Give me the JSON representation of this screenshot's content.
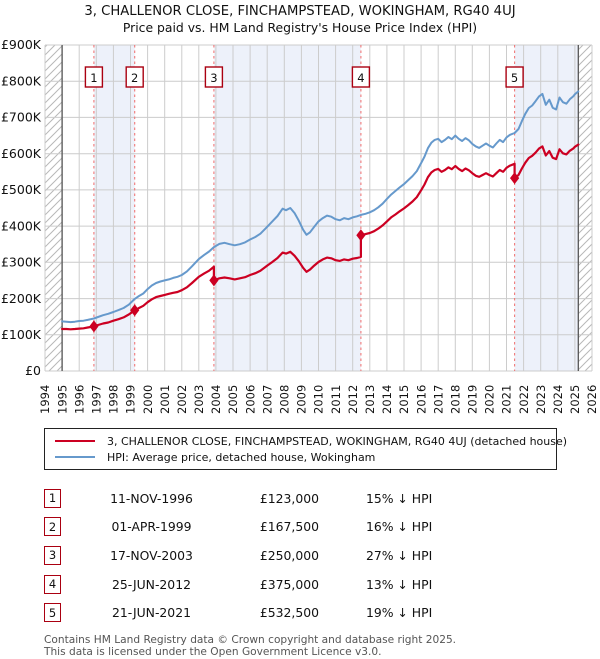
{
  "header": {
    "title": "3, CHALLENOR CLOSE, FINCHAMPSTEAD, WOKINGHAM, RG40 4UJ",
    "subtitle": "Price paid vs. HM Land Registry's House Price Index (HPI)"
  },
  "chart_data": {
    "type": "line",
    "title": "Price paid vs. HPI",
    "xlabel": "",
    "ylabel": "",
    "xlim": [
      1994,
      2026
    ],
    "ylim": [
      0,
      900
    ],
    "grid": true,
    "data_start": 1995.0,
    "data_end": 2025.2,
    "band_color": "#edf1fa",
    "grid_color": "#cccccc",
    "hatch_color": "#b8b8b8",
    "boundary_color": "#555555",
    "dashed_color": "#f07878",
    "marker_box_border": "#aa0011",
    "y_ticks": [
      {
        "value": 0,
        "label": "£0"
      },
      {
        "value": 100,
        "label": "£100K"
      },
      {
        "value": 200,
        "label": "£200K"
      },
      {
        "value": 300,
        "label": "£300K"
      },
      {
        "value": 400,
        "label": "£400K"
      },
      {
        "value": 500,
        "label": "£500K"
      },
      {
        "value": 600,
        "label": "£600K"
      },
      {
        "value": 700,
        "label": "£700K"
      },
      {
        "value": 800,
        "label": "£800K"
      },
      {
        "value": 900,
        "label": "£900K"
      }
    ],
    "x_ticks": [
      "1994",
      "1995",
      "1996",
      "1997",
      "1998",
      "1999",
      "2000",
      "2001",
      "2002",
      "2003",
      "2004",
      "2005",
      "2006",
      "2007",
      "2008",
      "2009",
      "2010",
      "2011",
      "2012",
      "2013",
      "2014",
      "2015",
      "2016",
      "2017",
      "2018",
      "2019",
      "2020",
      "2021",
      "2022",
      "2023",
      "2024",
      "2025",
      "2026"
    ],
    "bands": [
      [
        1996.86,
        1999.25
      ],
      [
        2003.88,
        2012.48
      ],
      [
        2021.47,
        2025.2
      ]
    ],
    "sales": [
      {
        "n": "1",
        "x": 1996.86,
        "price_k": 123
      },
      {
        "n": "2",
        "x": 1999.25,
        "price_k": 167.5
      },
      {
        "n": "3",
        "x": 2003.88,
        "price_k": 250
      },
      {
        "n": "4",
        "x": 2012.48,
        "price_k": 375
      },
      {
        "n": "5",
        "x": 2021.47,
        "price_k": 532.5
      }
    ],
    "series": [
      {
        "name": "property-price",
        "color": "#cc0022",
        "width": 2.2,
        "points": [
          [
            1995.0,
            116
          ],
          [
            1995.25,
            116
          ],
          [
            1995.5,
            115
          ],
          [
            1995.75,
            116
          ],
          [
            1996.0,
            117
          ],
          [
            1996.25,
            118
          ],
          [
            1996.5,
            120
          ],
          [
            1996.86,
            123
          ],
          [
            1997.1,
            127
          ],
          [
            1997.4,
            131
          ],
          [
            1997.7,
            134
          ],
          [
            1998.0,
            139
          ],
          [
            1998.3,
            143
          ],
          [
            1998.6,
            148
          ],
          [
            1998.9,
            156
          ],
          [
            1999.25,
            167.5
          ],
          [
            1999.5,
            174
          ],
          [
            1999.75,
            180
          ],
          [
            2000.0,
            190
          ],
          [
            2000.25,
            198
          ],
          [
            2000.5,
            204
          ],
          [
            2000.75,
            207
          ],
          [
            2001.0,
            210
          ],
          [
            2001.25,
            213
          ],
          [
            2001.5,
            216
          ],
          [
            2001.75,
            218
          ],
          [
            2002.0,
            223
          ],
          [
            2002.3,
            231
          ],
          [
            2002.6,
            243
          ],
          [
            2003.0,
            260
          ],
          [
            2003.3,
            269
          ],
          [
            2003.6,
            277
          ],
          [
            2003.88,
            288
          ],
          [
            2003.88,
            250
          ],
          [
            2004.2,
            256
          ],
          [
            2004.5,
            258
          ],
          [
            2004.8,
            256
          ],
          [
            2005.1,
            253
          ],
          [
            2005.4,
            256
          ],
          [
            2005.7,
            259
          ],
          [
            2006.0,
            265
          ],
          [
            2006.3,
            270
          ],
          [
            2006.6,
            277
          ],
          [
            2007.0,
            291
          ],
          [
            2007.3,
            301
          ],
          [
            2007.6,
            312
          ],
          [
            2007.9,
            327
          ],
          [
            2008.1,
            324
          ],
          [
            2008.35,
            329
          ],
          [
            2008.6,
            318
          ],
          [
            2008.85,
            303
          ],
          [
            2009.1,
            285
          ],
          [
            2009.3,
            274
          ],
          [
            2009.5,
            280
          ],
          [
            2009.75,
            291
          ],
          [
            2010.0,
            301
          ],
          [
            2010.25,
            308
          ],
          [
            2010.5,
            313
          ],
          [
            2010.75,
            311
          ],
          [
            2011.0,
            306
          ],
          [
            2011.25,
            304
          ],
          [
            2011.5,
            308
          ],
          [
            2011.75,
            306
          ],
          [
            2012.0,
            310
          ],
          [
            2012.25,
            312
          ],
          [
            2012.48,
            315
          ],
          [
            2012.48,
            375
          ],
          [
            2012.75,
            378
          ],
          [
            2013.0,
            381
          ],
          [
            2013.25,
            386
          ],
          [
            2013.5,
            393
          ],
          [
            2013.75,
            402
          ],
          [
            2014.0,
            413
          ],
          [
            2014.25,
            424
          ],
          [
            2014.5,
            432
          ],
          [
            2014.75,
            441
          ],
          [
            2015.0,
            449
          ],
          [
            2015.25,
            458
          ],
          [
            2015.5,
            468
          ],
          [
            2015.75,
            480
          ],
          [
            2016.0,
            499
          ],
          [
            2016.2,
            515
          ],
          [
            2016.4,
            535
          ],
          [
            2016.6,
            548
          ],
          [
            2016.8,
            555
          ],
          [
            2017.0,
            558
          ],
          [
            2017.2,
            550
          ],
          [
            2017.4,
            555
          ],
          [
            2017.6,
            562
          ],
          [
            2017.8,
            557
          ],
          [
            2018.0,
            566
          ],
          [
            2018.2,
            558
          ],
          [
            2018.4,
            552
          ],
          [
            2018.6,
            559
          ],
          [
            2018.8,
            554
          ],
          [
            2019.0,
            546
          ],
          [
            2019.2,
            539
          ],
          [
            2019.4,
            536
          ],
          [
            2019.6,
            541
          ],
          [
            2019.8,
            546
          ],
          [
            2020.0,
            541
          ],
          [
            2020.2,
            537
          ],
          [
            2020.4,
            546
          ],
          [
            2020.6,
            555
          ],
          [
            2020.8,
            550
          ],
          [
            2021.0,
            561
          ],
          [
            2021.2,
            567
          ],
          [
            2021.47,
            572
          ],
          [
            2021.47,
            532.5
          ],
          [
            2021.7,
            541
          ],
          [
            2021.9,
            559
          ],
          [
            2022.1,
            575
          ],
          [
            2022.3,
            588
          ],
          [
            2022.5,
            594
          ],
          [
            2022.7,
            603
          ],
          [
            2022.9,
            614
          ],
          [
            2023.1,
            620
          ],
          [
            2023.3,
            595
          ],
          [
            2023.5,
            607
          ],
          [
            2023.7,
            589
          ],
          [
            2023.9,
            585
          ],
          [
            2024.1,
            612
          ],
          [
            2024.3,
            601
          ],
          [
            2024.5,
            598
          ],
          [
            2024.7,
            608
          ],
          [
            2024.9,
            614
          ],
          [
            2025.0,
            619
          ],
          [
            2025.2,
            625
          ]
        ]
      },
      {
        "name": "hpi",
        "color": "#6699cc",
        "width": 2,
        "points": [
          [
            1995.0,
            137
          ],
          [
            1995.25,
            136
          ],
          [
            1995.5,
            135
          ],
          [
            1995.75,
            136
          ],
          [
            1996.0,
            138
          ],
          [
            1996.25,
            139
          ],
          [
            1996.5,
            141
          ],
          [
            1996.86,
            145
          ],
          [
            1997.1,
            149
          ],
          [
            1997.4,
            154
          ],
          [
            1997.7,
            158
          ],
          [
            1998.0,
            163
          ],
          [
            1998.3,
            168
          ],
          [
            1998.6,
            174
          ],
          [
            1998.9,
            183
          ],
          [
            1999.25,
            199
          ],
          [
            1999.5,
            207
          ],
          [
            1999.75,
            214
          ],
          [
            2000.0,
            226
          ],
          [
            2000.25,
            236
          ],
          [
            2000.5,
            243
          ],
          [
            2000.75,
            247
          ],
          [
            2001.0,
            250
          ],
          [
            2001.25,
            253
          ],
          [
            2001.5,
            257
          ],
          [
            2001.75,
            260
          ],
          [
            2002.0,
            265
          ],
          [
            2002.3,
            275
          ],
          [
            2002.6,
            289
          ],
          [
            2003.0,
            309
          ],
          [
            2003.3,
            320
          ],
          [
            2003.6,
            330
          ],
          [
            2003.88,
            342
          ],
          [
            2004.2,
            351
          ],
          [
            2004.5,
            354
          ],
          [
            2004.8,
            350
          ],
          [
            2005.1,
            347
          ],
          [
            2005.4,
            350
          ],
          [
            2005.7,
            355
          ],
          [
            2006.0,
            363
          ],
          [
            2006.3,
            370
          ],
          [
            2006.6,
            379
          ],
          [
            2007.0,
            398
          ],
          [
            2007.3,
            413
          ],
          [
            2007.6,
            428
          ],
          [
            2007.9,
            448
          ],
          [
            2008.1,
            444
          ],
          [
            2008.35,
            450
          ],
          [
            2008.6,
            436
          ],
          [
            2008.85,
            415
          ],
          [
            2009.1,
            390
          ],
          [
            2009.3,
            376
          ],
          [
            2009.5,
            383
          ],
          [
            2009.75,
            398
          ],
          [
            2010.0,
            413
          ],
          [
            2010.25,
            422
          ],
          [
            2010.5,
            429
          ],
          [
            2010.75,
            426
          ],
          [
            2011.0,
            419
          ],
          [
            2011.25,
            416
          ],
          [
            2011.5,
            422
          ],
          [
            2011.75,
            419
          ],
          [
            2012.0,
            424
          ],
          [
            2012.25,
            427
          ],
          [
            2012.48,
            431
          ],
          [
            2012.75,
            434
          ],
          [
            2013.0,
            438
          ],
          [
            2013.25,
            444
          ],
          [
            2013.5,
            452
          ],
          [
            2013.75,
            462
          ],
          [
            2014.0,
            475
          ],
          [
            2014.25,
            487
          ],
          [
            2014.5,
            497
          ],
          [
            2014.75,
            507
          ],
          [
            2015.0,
            516
          ],
          [
            2015.25,
            527
          ],
          [
            2015.5,
            538
          ],
          [
            2015.75,
            552
          ],
          [
            2016.0,
            574
          ],
          [
            2016.2,
            592
          ],
          [
            2016.4,
            615
          ],
          [
            2016.6,
            630
          ],
          [
            2016.8,
            638
          ],
          [
            2017.0,
            641
          ],
          [
            2017.2,
            632
          ],
          [
            2017.4,
            638
          ],
          [
            2017.6,
            646
          ],
          [
            2017.8,
            640
          ],
          [
            2018.0,
            650
          ],
          [
            2018.2,
            641
          ],
          [
            2018.4,
            635
          ],
          [
            2018.6,
            643
          ],
          [
            2018.8,
            637
          ],
          [
            2019.0,
            627
          ],
          [
            2019.2,
            620
          ],
          [
            2019.4,
            616
          ],
          [
            2019.6,
            622
          ],
          [
            2019.8,
            628
          ],
          [
            2020.0,
            622
          ],
          [
            2020.2,
            617
          ],
          [
            2020.4,
            628
          ],
          [
            2020.6,
            638
          ],
          [
            2020.8,
            632
          ],
          [
            2021.0,
            645
          ],
          [
            2021.2,
            652
          ],
          [
            2021.47,
            657
          ],
          [
            2021.7,
            668
          ],
          [
            2021.9,
            690
          ],
          [
            2022.1,
            710
          ],
          [
            2022.3,
            726
          ],
          [
            2022.5,
            733
          ],
          [
            2022.7,
            745
          ],
          [
            2022.9,
            758
          ],
          [
            2023.1,
            765
          ],
          [
            2023.3,
            735
          ],
          [
            2023.5,
            749
          ],
          [
            2023.7,
            727
          ],
          [
            2023.9,
            722
          ],
          [
            2024.1,
            755
          ],
          [
            2024.3,
            742
          ],
          [
            2024.5,
            738
          ],
          [
            2024.7,
            750
          ],
          [
            2024.9,
            758
          ],
          [
            2025.0,
            764
          ],
          [
            2025.2,
            772
          ]
        ]
      }
    ]
  },
  "legend": {
    "items": [
      {
        "label": "3, CHALLENOR CLOSE, FINCHAMPSTEAD, WOKINGHAM, RG40 4UJ (detached house)",
        "color": "#cc0022"
      },
      {
        "label": "HPI: Average price, detached house, Wokingham",
        "color": "#6699cc"
      }
    ]
  },
  "sales_table": {
    "rows": [
      {
        "num": "1",
        "date": "11-NOV-1996",
        "price": "£123,000",
        "vs_hpi": "15% ↓ HPI"
      },
      {
        "num": "2",
        "date": "01-APR-1999",
        "price": "£167,500",
        "vs_hpi": "16% ↓ HPI"
      },
      {
        "num": "3",
        "date": "17-NOV-2003",
        "price": "£250,000",
        "vs_hpi": "27% ↓ HPI"
      },
      {
        "num": "4",
        "date": "25-JUN-2012",
        "price": "£375,000",
        "vs_hpi": "13% ↓ HPI"
      },
      {
        "num": "5",
        "date": "21-JUN-2021",
        "price": "£532,500",
        "vs_hpi": "19% ↓ HPI"
      }
    ]
  },
  "footer": {
    "line1": "Contains HM Land Registry data © Crown copyright and database right 2025.",
    "line2": "This data is licensed under the Open Government Licence v3.0."
  }
}
